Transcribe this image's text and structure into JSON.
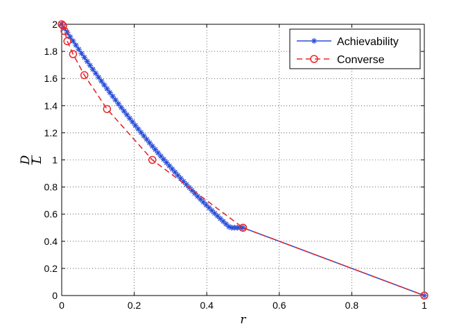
{
  "chart_data": {
    "type": "line",
    "xlabel": "r",
    "ylabel_numerator": "D",
    "ylabel_denominator": "L",
    "xlim": [
      0,
      1
    ],
    "ylim": [
      0,
      2
    ],
    "xticks": [
      0,
      0.2,
      0.4,
      0.6,
      0.8,
      1
    ],
    "xtick_labels": [
      "0",
      "0.2",
      "0.4",
      "0.6",
      "0.8",
      "1"
    ],
    "yticks": [
      0,
      0.2,
      0.4,
      0.6,
      0.8,
      1,
      1.2,
      1.4,
      1.6,
      1.8,
      2
    ],
    "ytick_labels": [
      "0",
      "0.2",
      "0.4",
      "0.6",
      "0.8",
      "1",
      "1.2",
      "1.4",
      "1.6",
      "1.8",
      "2"
    ],
    "grid": true,
    "legend_position": "top-right",
    "series": [
      {
        "name": "Achievability",
        "color": "#2a4fd8",
        "line_style": "solid",
        "marker": "asterisk",
        "x": [
          0,
          0.0078,
          0.0156,
          0.0234,
          0.0313,
          0.0391,
          0.0469,
          0.0547,
          0.0625,
          0.0703,
          0.0781,
          0.0859,
          0.0938,
          0.1016,
          0.1094,
          0.1172,
          0.125,
          0.1328,
          0.1406,
          0.1484,
          0.1563,
          0.1641,
          0.1719,
          0.1797,
          0.1875,
          0.1953,
          0.2031,
          0.2109,
          0.2188,
          0.2266,
          0.2344,
          0.2422,
          0.25,
          0.2578,
          0.2656,
          0.2734,
          0.2813,
          0.2891,
          0.2969,
          0.3047,
          0.3125,
          0.3203,
          0.3281,
          0.3359,
          0.3438,
          0.3516,
          0.3594,
          0.3672,
          0.375,
          0.3828,
          0.3906,
          0.3984,
          0.4063,
          0.4141,
          0.4219,
          0.4297,
          0.4375,
          0.4453,
          0.4531,
          0.4609,
          0.4688,
          0.4766,
          0.4844,
          0.4922,
          0.5,
          1
        ],
        "y": [
          2,
          1.9688,
          1.9378,
          1.907,
          1.8764,
          1.846,
          1.8157,
          1.7857,
          1.7559,
          1.7263,
          1.6969,
          1.6677,
          1.6387,
          1.6099,
          1.5813,
          1.5529,
          1.5247,
          1.4967,
          1.4689,
          1.4413,
          1.414,
          1.3868,
          1.3598,
          1.3331,
          1.3065,
          1.2802,
          1.254,
          1.2281,
          1.2024,
          1.1768,
          1.1515,
          1.1264,
          1.1015,
          1.0768,
          1.0523,
          1.028,
          1.0039,
          0.9801,
          0.9564,
          0.933,
          0.9097,
          0.8867,
          0.8639,
          0.8413,
          0.8189,
          0.7967,
          0.7747,
          0.7529,
          0.7313,
          0.71,
          0.6888,
          0.6679,
          0.6472,
          0.6267,
          0.6064,
          0.5863,
          0.5665,
          0.5468,
          0.5274,
          0.5082,
          0.5,
          0.5,
          0.5,
          0.5,
          0.5,
          0
        ]
      },
      {
        "name": "Converse",
        "color": "#e8282b",
        "line_style": "dashed",
        "marker": "circle",
        "x": [
          0,
          0.0039,
          0.0078,
          0.0156,
          0.0313,
          0.0625,
          0.125,
          0.25,
          0.5,
          1
        ],
        "y": [
          2,
          1.99,
          1.95,
          1.875,
          1.78,
          1.625,
          1.375,
          1.0,
          0.5,
          0
        ]
      }
    ]
  }
}
